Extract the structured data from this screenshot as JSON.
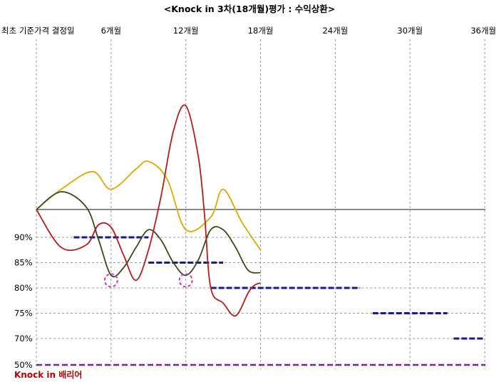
{
  "chart_data": {
    "type": "line",
    "title": "<Knock in 3차(18개월)평가 : 수익상환>",
    "x_labels": [
      "최초 기준가격 결정일",
      "6개월",
      "12개월",
      "18개월",
      "24개월",
      "30개월",
      "36개월"
    ],
    "x_months": [
      0,
      6,
      12,
      18,
      24,
      30,
      36
    ],
    "xlim": [
      0,
      36
    ],
    "y_ticks": [
      {
        "label": "90%",
        "value": 90
      },
      {
        "label": "85%",
        "value": 85
      },
      {
        "label": "80%",
        "value": 80
      },
      {
        "label": "75%",
        "value": 75
      },
      {
        "label": "70%",
        "value": 70
      },
      {
        "label": "50%",
        "value": 50
      }
    ],
    "barrier": {
      "label": "Knock in 배리어",
      "value": 50,
      "color": "#7b1fa2"
    },
    "label_color": "#c00000",
    "initial_level": 95.5,
    "redemption_barriers": [
      {
        "value": 90,
        "from": 3,
        "to": 9
      },
      {
        "value": 85,
        "from": 9,
        "to": 15
      },
      {
        "value": 80,
        "from": 14,
        "to": 26
      },
      {
        "value": 75,
        "from": 27,
        "to": 33
      },
      {
        "value": 70,
        "from": 33.5,
        "to": 36
      }
    ],
    "series": [
      {
        "color": "#e0a800",
        "x": [
          0,
          2,
          4.5,
          6,
          8,
          9,
          10.5,
          12,
          14,
          15,
          16.5,
          18
        ],
        "y": [
          95.5,
          99.5,
          103,
          99.5,
          103.5,
          105,
          101.5,
          91.5,
          94,
          99.5,
          93,
          87.5
        ]
      },
      {
        "color": "#3a4a1c",
        "x": [
          0,
          2,
          4,
          5,
          6,
          7,
          8,
          9,
          10,
          11,
          12,
          13,
          14,
          15,
          16,
          17,
          18
        ],
        "y": [
          95.5,
          99,
          96,
          89.5,
          82.5,
          84,
          88,
          91.5,
          89.5,
          85,
          82.5,
          85.5,
          91.5,
          91.5,
          88,
          83.5,
          83
        ]
      },
      {
        "color": "#b71c1c",
        "x": [
          0,
          2,
          4,
          5,
          6,
          7,
          8,
          9,
          10,
          11,
          12,
          13,
          13.5,
          14,
          15,
          16,
          17,
          17.5,
          18
        ],
        "y": [
          95.5,
          88,
          88.5,
          92.5,
          92,
          86.5,
          81.5,
          87.5,
          98,
          111,
          116,
          106,
          94.5,
          80,
          77,
          74.5,
          79,
          80.5,
          81
        ]
      }
    ],
    "knock_in_markers": [
      {
        "x": 6,
        "y": 81.5
      },
      {
        "x": 12,
        "y": 81.5
      }
    ],
    "marker_color": "#cc33cc",
    "reference_color": "#555555",
    "barrier_color": "#1a1a8c",
    "grid": true
  }
}
